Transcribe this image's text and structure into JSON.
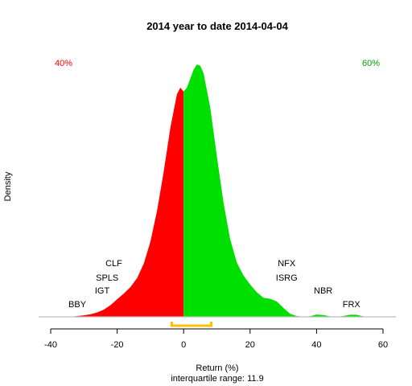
{
  "chart_data": {
    "type": "area",
    "title": "2014  year to date 2014-04-04",
    "xlabel": "Return (%)",
    "subtitle": "interquartile range: 11.9",
    "ylabel": "Density",
    "xlim": [
      -40,
      60
    ],
    "ylim": [
      0,
      1
    ],
    "x_ticks": [
      -40,
      -20,
      0,
      20,
      40,
      60
    ],
    "negative_share": "40%",
    "positive_share": "60%",
    "colors": {
      "negative": "#ff0000",
      "positive": "#00e000",
      "iqr": "#ffc000",
      "baseline": "#bebebe"
    },
    "iqr_range": [
      -3.6,
      8.3
    ],
    "density": [
      {
        "x": -34,
        "y": 0.0
      },
      {
        "x": -32,
        "y": 0.003
      },
      {
        "x": -30,
        "y": 0.006
      },
      {
        "x": -28,
        "y": 0.01
      },
      {
        "x": -26,
        "y": 0.017
      },
      {
        "x": -24,
        "y": 0.028
      },
      {
        "x": -22,
        "y": 0.045
      },
      {
        "x": -20,
        "y": 0.068
      },
      {
        "x": -18,
        "y": 0.09
      },
      {
        "x": -16,
        "y": 0.115
      },
      {
        "x": -14,
        "y": 0.15
      },
      {
        "x": -12,
        "y": 0.205
      },
      {
        "x": -10,
        "y": 0.29
      },
      {
        "x": -8,
        "y": 0.41
      },
      {
        "x": -6,
        "y": 0.56
      },
      {
        "x": -4,
        "y": 0.73
      },
      {
        "x": -2,
        "y": 0.86
      },
      {
        "x": -1,
        "y": 0.885
      },
      {
        "x": 0,
        "y": 0.87
      },
      {
        "x": 1,
        "y": 0.885
      },
      {
        "x": 2,
        "y": 0.92
      },
      {
        "x": 3,
        "y": 0.955
      },
      {
        "x": 4,
        "y": 0.975
      },
      {
        "x": 5,
        "y": 0.97
      },
      {
        "x": 6,
        "y": 0.94
      },
      {
        "x": 8,
        "y": 0.81
      },
      {
        "x": 10,
        "y": 0.62
      },
      {
        "x": 12,
        "y": 0.44
      },
      {
        "x": 14,
        "y": 0.3
      },
      {
        "x": 16,
        "y": 0.21
      },
      {
        "x": 18,
        "y": 0.16
      },
      {
        "x": 20,
        "y": 0.125
      },
      {
        "x": 22,
        "y": 0.095
      },
      {
        "x": 24,
        "y": 0.074
      },
      {
        "x": 26,
        "y": 0.07
      },
      {
        "x": 28,
        "y": 0.06
      },
      {
        "x": 30,
        "y": 0.035
      },
      {
        "x": 32,
        "y": 0.012
      },
      {
        "x": 34,
        "y": 0.003
      },
      {
        "x": 36,
        "y": 0.001
      },
      {
        "x": 38,
        "y": 0.002
      },
      {
        "x": 40,
        "y": 0.009
      },
      {
        "x": 42,
        "y": 0.007
      },
      {
        "x": 44,
        "y": 0.002
      },
      {
        "x": 46,
        "y": 0.0
      },
      {
        "x": 48,
        "y": 0.003
      },
      {
        "x": 50,
        "y": 0.008
      },
      {
        "x": 52,
        "y": 0.008
      },
      {
        "x": 54,
        "y": 0.002
      },
      {
        "x": 55,
        "y": 0.0
      }
    ],
    "annotations": [
      {
        "text": "BBY",
        "x": -32,
        "row": 4
      },
      {
        "text": "IGT",
        "x": -24.5,
        "row": 3
      },
      {
        "text": "SPLS",
        "x": -23,
        "row": 2
      },
      {
        "text": "CLF",
        "x": -21,
        "row": 1
      },
      {
        "text": "NFX",
        "x": 31,
        "row": 1
      },
      {
        "text": "ISRG",
        "x": 31,
        "row": 2
      },
      {
        "text": "NBR",
        "x": 42,
        "row": 3
      },
      {
        "text": "FRX",
        "x": 50.5,
        "row": 4
      }
    ]
  }
}
